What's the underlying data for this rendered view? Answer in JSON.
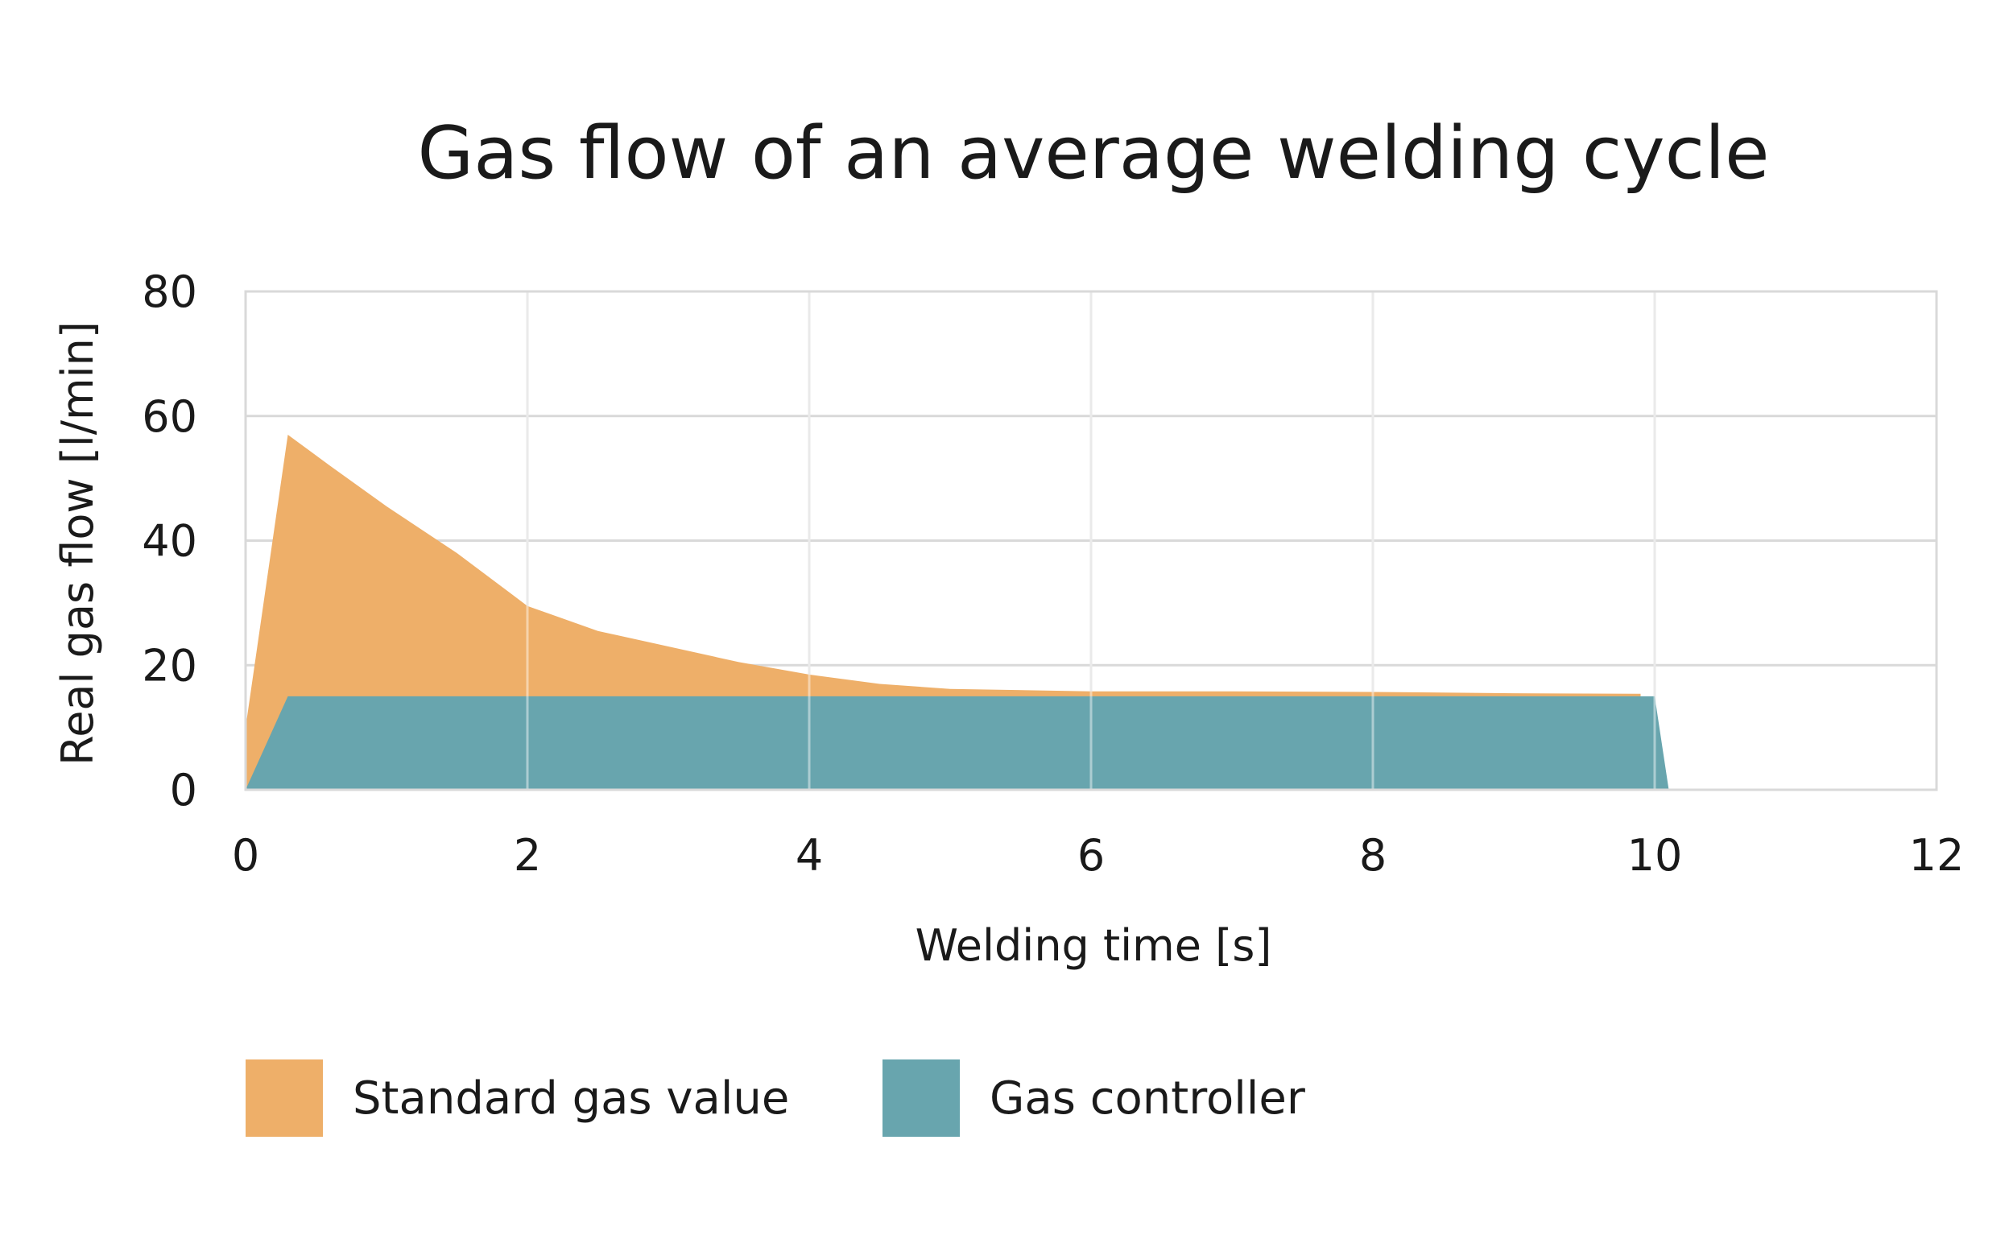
{
  "chart_data": {
    "type": "area",
    "title": "Gas flow of an average welding cycle",
    "xlabel": "Welding time [s]",
    "ylabel": "Real gas flow [l/min]",
    "xlim": [
      0,
      12
    ],
    "ylim": [
      0,
      80
    ],
    "x_ticks": [
      "0",
      "2",
      "4",
      "6",
      "8",
      "10",
      "12"
    ],
    "y_ticks": [
      "0",
      "20",
      "40",
      "60",
      "80"
    ],
    "grid": true,
    "legend_position": "bottom",
    "series": [
      {
        "name": "Standard gas value",
        "color": "#EEAF69",
        "points": [
          [
            0,
            0
          ],
          [
            0,
            10
          ],
          [
            0.3,
            57
          ],
          [
            0.6,
            52
          ],
          [
            1,
            45.5
          ],
          [
            1.5,
            38
          ],
          [
            2,
            29.5
          ],
          [
            2.5,
            25.5
          ],
          [
            3,
            23
          ],
          [
            3.5,
            20.5
          ],
          [
            4,
            18.5
          ],
          [
            4.5,
            17
          ],
          [
            5,
            16.2
          ],
          [
            6,
            15.8
          ],
          [
            7,
            15.8
          ],
          [
            8,
            15.7
          ],
          [
            9,
            15.5
          ],
          [
            9.9,
            15.4
          ],
          [
            9.9,
            0
          ]
        ]
      },
      {
        "name": "Gas controller",
        "color": "#68A5AE",
        "points": [
          [
            0,
            0
          ],
          [
            0.3,
            15
          ],
          [
            10,
            15
          ],
          [
            10.1,
            0
          ]
        ]
      }
    ]
  }
}
